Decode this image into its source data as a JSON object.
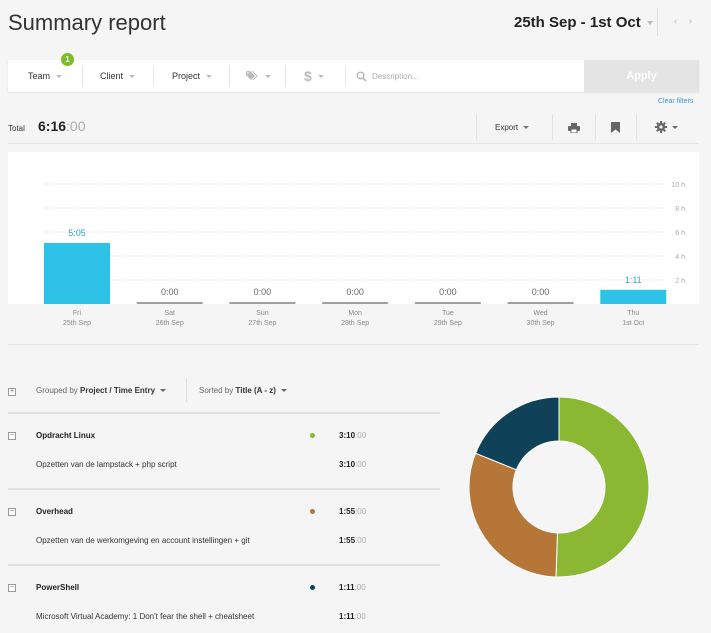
{
  "header": {
    "title": "Summary report",
    "date_range": "25th Sep - 1st Oct",
    "prev_arrow": "‹",
    "next_arrow": "›"
  },
  "filters": {
    "team_label": "Team",
    "team_badge": "1",
    "client_label": "Client",
    "project_label": "Project",
    "tag_icon": "tag-icon",
    "billable_icon": "dollar-icon",
    "search_icon": "search-icon",
    "description_placeholder": "Description...",
    "apply_label": "Apply",
    "clear_filters_label": "Clear filters"
  },
  "totals": {
    "label": "Total",
    "hm": "6:16",
    "sec": ":00"
  },
  "toolbar": {
    "export_label": "Export",
    "print_icon": "printer-icon",
    "bookmark_icon": "bookmark-icon",
    "settings_icon": "gear-icon"
  },
  "chart_data": {
    "type": "bar",
    "categories": [
      "Fri 25th Sep",
      "Sat 26th Sep",
      "Sun 27th Sep",
      "Mon 28th Sep",
      "Tue 29th Sep",
      "Wed 30th Sep",
      "Thu 1st Oct"
    ],
    "day_names": [
      "Fri",
      "Sat",
      "Sun",
      "Mon",
      "Tue",
      "Wed",
      "Thu"
    ],
    "day_dates": [
      "25th Sep",
      "26th Sep",
      "27th Sep",
      "28th Sep",
      "29th Sep",
      "30th Sep",
      "1st Oct"
    ],
    "values_hours": [
      5.0833,
      0,
      0,
      0,
      0,
      0,
      1.1833
    ],
    "data_labels": [
      "5:05",
      "0:00",
      "0:00",
      "0:00",
      "0:00",
      "0:00",
      "1:11"
    ],
    "ytick_values": [
      2,
      4,
      6,
      8,
      10
    ],
    "ytick_labels": [
      "2 h",
      "4 h",
      "6 h",
      "8 h",
      "10 h"
    ],
    "ylim": [
      0,
      10
    ],
    "grid": true,
    "bar_color": "#2ec2e8",
    "zero_bar_color": "#a0a0a0"
  },
  "grouping": {
    "grouped_prefix": "Grouped by",
    "grouped_value": "Project / Time Entry",
    "sorted_prefix": "Sorted by",
    "sorted_value": "Title (A - z)",
    "toggle_expand": "+",
    "toggle_collapse": "−"
  },
  "projects": [
    {
      "name": "Opdracht Linux",
      "color": "#8bb833",
      "dur_hm": "3:10",
      "dur_sec": ":00",
      "entry": "Opzetten van de lampstack + php script",
      "entry_hm": "3:10",
      "entry_sec": ":00"
    },
    {
      "name": "Overhead",
      "color": "#b57637",
      "dur_hm": "1:55",
      "dur_sec": ":00",
      "entry": "Opzetten van de werkomgeving en account instellingen + git",
      "entry_hm": "1:55",
      "entry_sec": ":00"
    },
    {
      "name": "PowerShell",
      "color": "#0f4259",
      "dur_hm": "1:11",
      "dur_sec": ":00",
      "entry": "Microsoft Virtual Academy: 1 Don't fear the shell + cheatsheet",
      "entry_hm": "1:11",
      "entry_sec": ":00"
    }
  ],
  "donut": {
    "values_minutes": [
      190,
      115,
      71
    ],
    "colors": [
      "#8bb833",
      "#b57637",
      "#0f4259"
    ]
  }
}
